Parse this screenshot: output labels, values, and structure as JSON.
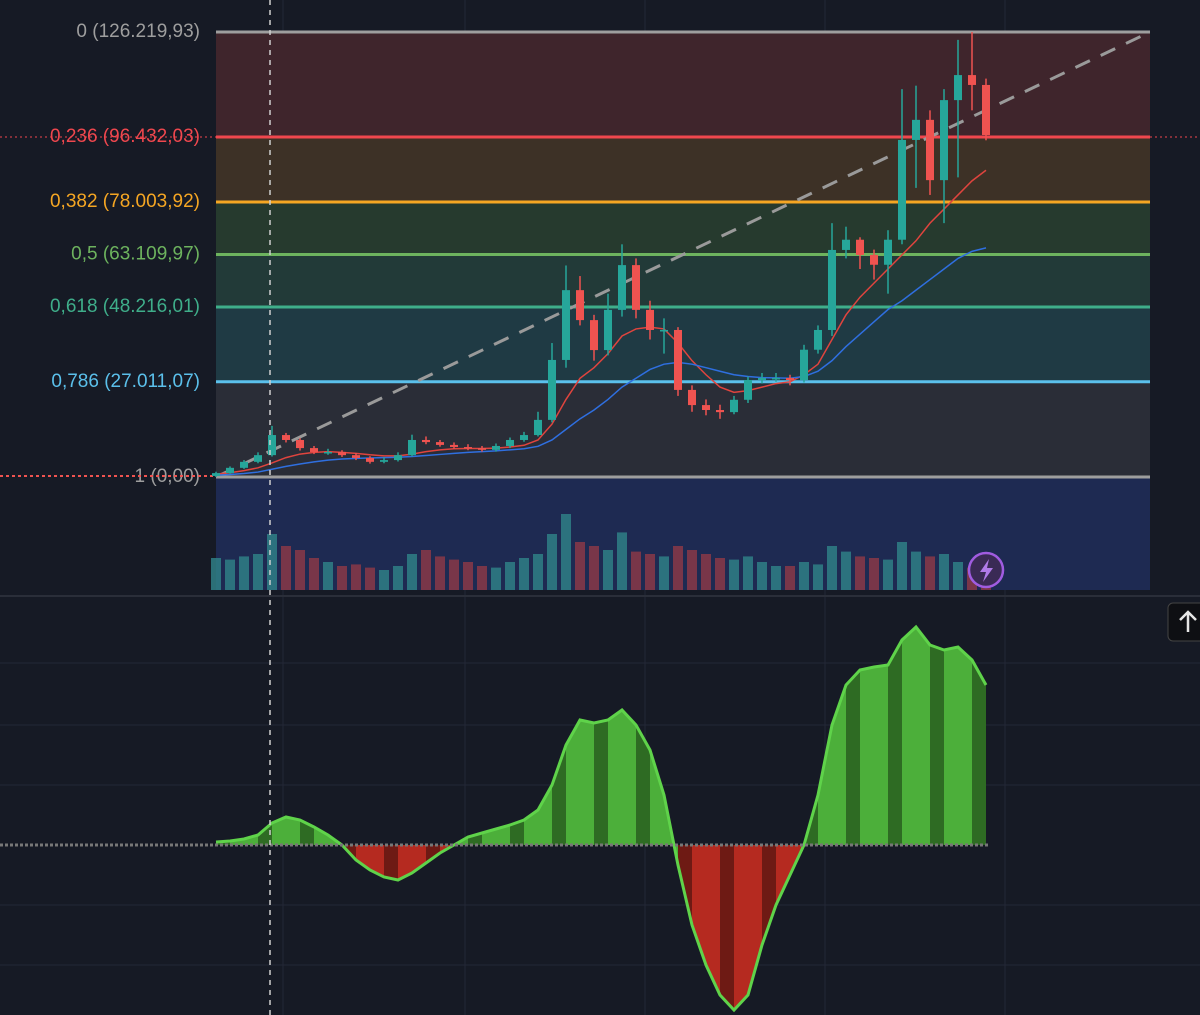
{
  "chart_data": {
    "type": "candlestick",
    "ylim": [
      0,
      126219.93
    ],
    "levels": [
      {
        "value": 126219.93,
        "label": "0 (126.219,93)",
        "color": "#9e9e9e"
      },
      {
        "value": 96432.03,
        "label": "0,236 (96.432,03)",
        "color": "#f0474e"
      },
      {
        "value": 78003.92,
        "label": "0,382 (78.003,92)",
        "color": "#f5a623"
      },
      {
        "value": 63109.97,
        "label": "0,5 (63.109,97)",
        "color": "#6db35e"
      },
      {
        "value": 48216.01,
        "label": "0,618 (48.216,01)",
        "color": "#3fae8a"
      },
      {
        "value": 27011.07,
        "label": "0,786 (27.011,07)",
        "color": "#5bc0eb"
      },
      {
        "value": 0,
        "label": "1 (0,00)",
        "color": "#9e9e9e"
      }
    ],
    "up_color": "#26a69a",
    "down_color": "#ef5350",
    "open": [
      300,
      1100,
      2600,
      4300,
      6200,
      11900,
      10500,
      8200,
      7100,
      7100,
      6200,
      5400,
      4300,
      4800,
      6200,
      10500,
      9900,
      9100,
      8500,
      8200,
      7700,
      8800,
      10500,
      11900,
      16200,
      33200,
      53000,
      44500,
      36000,
      47400,
      60100,
      47400,
      41700,
      41700,
      24700,
      20400,
      19000,
      18400,
      21900,
      27500,
      28100,
      28100,
      27500,
      36100,
      41700,
      64400,
      67300,
      63000,
      60200,
      67300,
      95600,
      101300,
      84200,
      106900,
      114000,
      111200
    ],
    "high": [
      1500,
      3000,
      4800,
      7000,
      14500,
      12500,
      11000,
      8800,
      8000,
      7600,
      6800,
      5900,
      5600,
      7000,
      12000,
      11500,
      10500,
      9800,
      9300,
      8800,
      9500,
      11200,
      12800,
      18500,
      38000,
      60000,
      57000,
      46000,
      52000,
      66000,
      62000,
      50000,
      45000,
      42500,
      26000,
      22000,
      20500,
      23000,
      28500,
      29500,
      29500,
      29000,
      37500,
      43000,
      72000,
      71000,
      68000,
      64500,
      70000,
      110000,
      111000,
      104000,
      110000,
      124000,
      126200,
      113000
    ],
    "low": [
      0,
      900,
      2300,
      3900,
      5800,
      9800,
      7500,
      6500,
      6300,
      5700,
      4800,
      3800,
      3900,
      4400,
      5800,
      9300,
      8600,
      8000,
      7600,
      7200,
      7200,
      8200,
      10000,
      11500,
      15500,
      31000,
      43000,
      33000,
      34500,
      45500,
      45000,
      39000,
      35000,
      23000,
      18500,
      17500,
      16500,
      17800,
      21000,
      26500,
      27000,
      26000,
      26800,
      35000,
      40000,
      62000,
      59000,
      56000,
      52000,
      66000,
      82000,
      80000,
      72000,
      85000,
      104000,
      95500
    ],
    "close": [
      1100,
      2600,
      4300,
      6200,
      11900,
      10500,
      8200,
      7100,
      7100,
      6200,
      5400,
      4300,
      4800,
      6200,
      10500,
      9900,
      9100,
      8500,
      8200,
      7700,
      8800,
      10500,
      11900,
      16200,
      33200,
      53000,
      44500,
      36000,
      47400,
      60100,
      47400,
      41700,
      41700,
      24700,
      20400,
      19000,
      18400,
      21900,
      27500,
      28100,
      28100,
      27500,
      36100,
      41700,
      64400,
      67300,
      63000,
      60200,
      67300,
      95600,
      101300,
      84200,
      106900,
      114000,
      111200,
      97000
    ],
    "ma_fast": {
      "color": "#e0443e",
      "values": [
        800,
        1200,
        1800,
        2600,
        4000,
        5500,
        6500,
        7000,
        7200,
        7000,
        6700,
        6300,
        6000,
        6000,
        6500,
        7200,
        7700,
        8000,
        8100,
        8100,
        8200,
        8500,
        9000,
        10500,
        15000,
        22000,
        28000,
        31000,
        35000,
        40000,
        42000,
        42500,
        42000,
        38000,
        33000,
        29000,
        25500,
        24000,
        24500,
        25500,
        26500,
        27000,
        29000,
        32000,
        39000,
        46000,
        51000,
        55000,
        59000,
        63000,
        67000,
        72000,
        76000,
        80000,
        84000,
        87000
      ]
    },
    "ma_slow": {
      "color": "#2f6fe0",
      "values": [
        500,
        700,
        1000,
        1400,
        2200,
        3000,
        3700,
        4300,
        4800,
        5100,
        5300,
        5400,
        5500,
        5600,
        5800,
        6100,
        6400,
        6700,
        7000,
        7200,
        7400,
        7700,
        8000,
        8700,
        10500,
        13500,
        16500,
        19000,
        22000,
        25500,
        28000,
        30500,
        32000,
        32500,
        32000,
        31000,
        30000,
        29000,
        28500,
        28200,
        28100,
        28000,
        28500,
        30000,
        33000,
        37000,
        40500,
        44000,
        47500,
        50000,
        53000,
        56000,
        59000,
        62000,
        64000,
        65000
      ]
    },
    "volume": {
      "ylim": [
        0,
        100
      ],
      "values": [
        40,
        38,
        42,
        45,
        70,
        55,
        50,
        40,
        35,
        30,
        32,
        28,
        25,
        30,
        45,
        50,
        42,
        38,
        35,
        30,
        28,
        35,
        40,
        45,
        70,
        95,
        60,
        55,
        50,
        72,
        48,
        45,
        42,
        55,
        50,
        45,
        40,
        38,
        42,
        35,
        30,
        30,
        35,
        32,
        55,
        48,
        42,
        40,
        38,
        60,
        48,
        42,
        45,
        35,
        28,
        20
      ]
    },
    "oscillator": {
      "ylim": [
        -170,
        245
      ],
      "pos_color": "#4caf3a",
      "neg_color": "#b52a20",
      "values": [
        3,
        4,
        6,
        10,
        22,
        28,
        25,
        18,
        10,
        0,
        -15,
        -25,
        -32,
        -35,
        -28,
        -18,
        -8,
        0,
        8,
        12,
        16,
        20,
        25,
        35,
        60,
        100,
        125,
        122,
        125,
        135,
        120,
        95,
        50,
        -20,
        -80,
        -120,
        -150,
        -165,
        -150,
        -100,
        -60,
        -30,
        0,
        50,
        120,
        160,
        175,
        178,
        180,
        205,
        218,
        200,
        195,
        198,
        185,
        160
      ]
    }
  }
}
